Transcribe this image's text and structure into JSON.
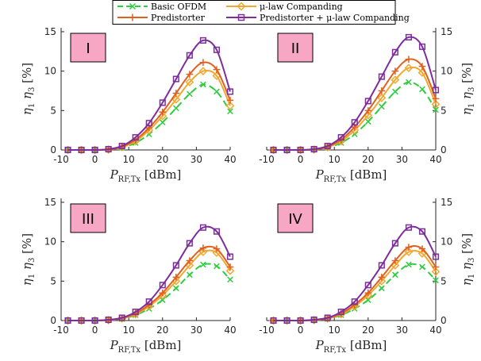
{
  "chart_data": {
    "type": "line",
    "layout": "2x2 panels",
    "x": [
      -8,
      -4,
      0,
      4,
      8,
      12,
      16,
      20,
      24,
      28,
      32,
      36,
      40
    ],
    "xlim": [
      -10,
      40
    ],
    "ylim": [
      0,
      15.5
    ],
    "xticks": [
      -10,
      0,
      10,
      20,
      30,
      40
    ],
    "yticks": [
      0,
      5,
      10,
      15
    ],
    "xlabel": {
      "main": "P",
      "sub": "RF,Tx",
      "unit": "[dBm]"
    },
    "ylabel": {
      "a": "η",
      "a_sub": "1",
      "b": "η",
      "b_sub": "3",
      "unit": "[%]"
    },
    "legend": [
      {
        "name": "Basic OFDM",
        "color": "#2ecc40",
        "marker": "x",
        "dash": true
      },
      {
        "name": "μ-law Companding",
        "color": "#f0a830",
        "marker": "diamond",
        "dash": false
      },
      {
        "name": "Predistorter",
        "color": "#e06020",
        "marker": "plus",
        "dash": false
      },
      {
        "name": "Predistorter + μ-law Companding",
        "color": "#7d2d9c",
        "marker": "square",
        "dash": false
      }
    ],
    "panels": [
      {
        "label": "I",
        "ylabel_side": "left",
        "series": [
          {
            "name": "Basic OFDM",
            "values": [
              0,
              0,
              0,
              0.05,
              0.3,
              0.9,
              2.0,
              3.5,
              5.3,
              7.1,
              8.3,
              7.4,
              4.9
            ]
          },
          {
            "name": "μ-law Companding",
            "values": [
              0,
              0,
              0,
              0.05,
              0.35,
              1.1,
              2.5,
              4.3,
              6.4,
              8.6,
              10.0,
              9.4,
              5.6
            ]
          },
          {
            "name": "Predistorter",
            "values": [
              0,
              0,
              0,
              0.05,
              0.4,
              1.3,
              2.8,
              4.8,
              7.2,
              9.6,
              11.1,
              10.2,
              6.3
            ]
          },
          {
            "name": "Predistorter + μ-law Companding",
            "values": [
              0,
              0,
              0,
              0.1,
              0.5,
              1.6,
              3.4,
              6.0,
              9.0,
              12.0,
              13.9,
              12.7,
              7.4
            ]
          }
        ]
      },
      {
        "label": "II",
        "ylabel_side": "right",
        "series": [
          {
            "name": "Basic OFDM",
            "values": [
              0,
              0,
              0,
              0.05,
              0.3,
              0.9,
              2.0,
              3.6,
              5.5,
              7.4,
              8.6,
              7.7,
              5.1
            ]
          },
          {
            "name": "μ-law Companding",
            "values": [
              0,
              0,
              0,
              0.05,
              0.35,
              1.1,
              2.5,
              4.4,
              6.6,
              8.9,
              10.4,
              9.8,
              5.8
            ]
          },
          {
            "name": "Predistorter",
            "values": [
              0,
              0,
              0,
              0.05,
              0.4,
              1.3,
              2.9,
              5.0,
              7.5,
              10.0,
              11.5,
              10.6,
              6.5
            ]
          },
          {
            "name": "Predistorter + μ-law Companding",
            "values": [
              0,
              0,
              0,
              0.1,
              0.5,
              1.6,
              3.5,
              6.2,
              9.3,
              12.4,
              14.3,
              13.1,
              7.6
            ]
          }
        ]
      },
      {
        "label": "III",
        "ylabel_side": "left",
        "series": [
          {
            "name": "Basic OFDM",
            "values": [
              0,
              0,
              0,
              0.05,
              0.2,
              0.7,
              1.5,
              2.6,
              4.1,
              5.8,
              7.1,
              6.9,
              5.2
            ]
          },
          {
            "name": "μ-law Companding",
            "values": [
              0,
              0,
              0,
              0.05,
              0.25,
              0.8,
              1.8,
              3.2,
              5.0,
              7.0,
              8.7,
              8.6,
              6.3
            ]
          },
          {
            "name": "Predistorter",
            "values": [
              0,
              0,
              0,
              0.05,
              0.3,
              0.9,
              2.0,
              3.5,
              5.5,
              7.6,
              9.2,
              9.1,
              6.8
            ]
          },
          {
            "name": "Predistorter + μ-law Companding",
            "values": [
              0,
              0,
              0,
              0.1,
              0.35,
              1.1,
              2.4,
              4.5,
              7.0,
              9.8,
              11.8,
              11.3,
              8.1
            ]
          }
        ]
      },
      {
        "label": "IV",
        "ylabel_side": "right",
        "series": [
          {
            "name": "Basic OFDM",
            "values": [
              0,
              0,
              0,
              0.05,
              0.2,
              0.7,
              1.5,
              2.6,
              4.1,
              5.8,
              7.1,
              6.8,
              5.1
            ]
          },
          {
            "name": "μ-law Companding",
            "values": [
              0,
              0,
              0,
              0.05,
              0.25,
              0.8,
              1.8,
              3.2,
              5.0,
              7.0,
              8.7,
              8.5,
              6.2
            ]
          },
          {
            "name": "Predistorter",
            "values": [
              0,
              0,
              0,
              0.05,
              0.3,
              0.9,
              2.0,
              3.5,
              5.5,
              7.6,
              9.3,
              9.1,
              6.8
            ]
          },
          {
            "name": "Predistorter + μ-law Companding",
            "values": [
              0,
              0,
              0,
              0.1,
              0.35,
              1.1,
              2.4,
              4.5,
              7.0,
              9.8,
              11.8,
              11.3,
              8.1
            ]
          }
        ]
      }
    ]
  }
}
